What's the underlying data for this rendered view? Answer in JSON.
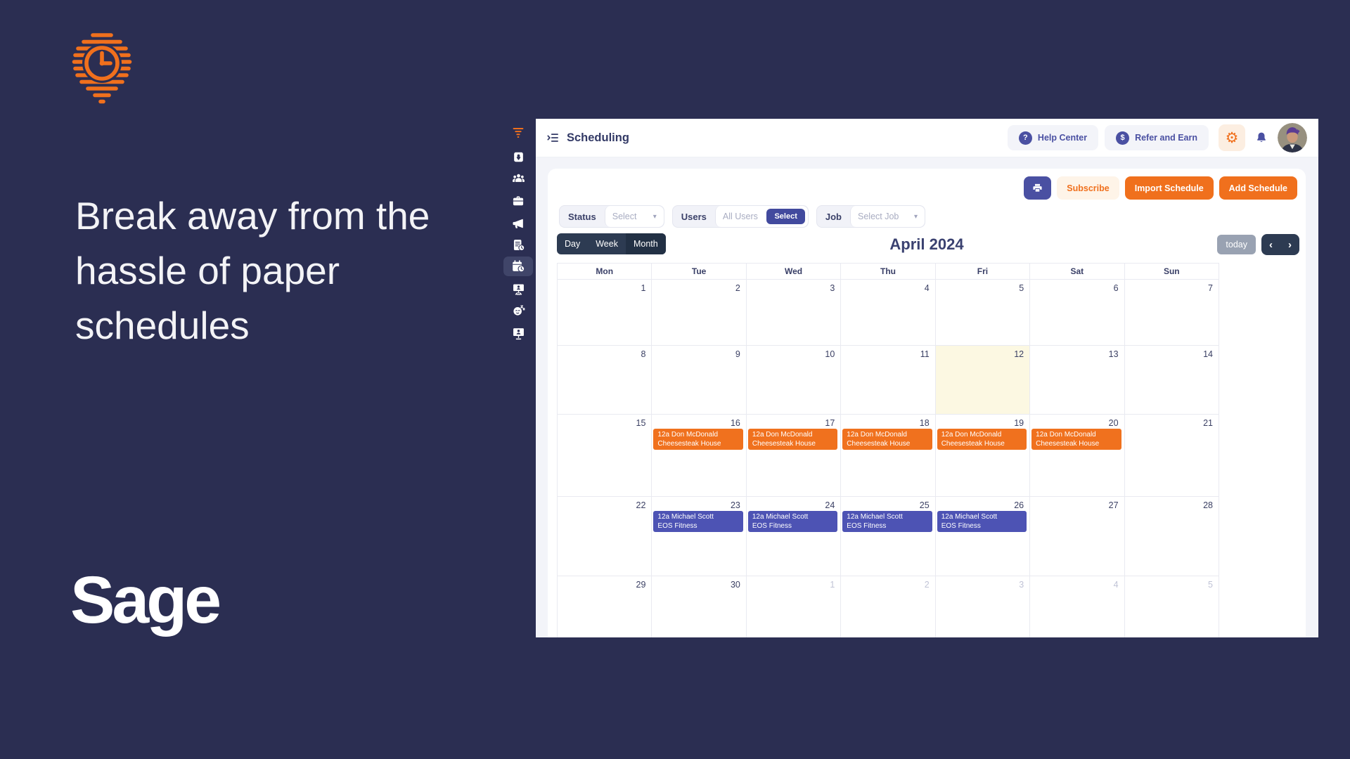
{
  "brand": {
    "headline": "Break away from the hassle of paper schedules",
    "wordmark": "Sage",
    "colors": {
      "background": "#2B2E52",
      "orange": "#F0701D",
      "indigo": "#4A50A2"
    }
  },
  "icon_glyphs": {
    "gear": "⚙",
    "question": "?",
    "dollar": "$",
    "prev": "‹",
    "next": "›",
    "dropdown": "▾"
  },
  "app": {
    "sidebar": {
      "items": [
        "sage-funnel",
        "map",
        "team",
        "briefcase",
        "announcements",
        "timesheets",
        "scheduling",
        "training",
        "leave",
        "kiosk"
      ],
      "active_item": "scheduling"
    },
    "header": {
      "title": "Scheduling",
      "help_center": "Help Center",
      "refer_and_earn": "Refer and Earn"
    },
    "toolbar": {
      "subscribe": "Subscribe",
      "import_schedule": "Import Schedule",
      "add_schedule": "Add Schedule"
    },
    "filters": {
      "status_label": "Status",
      "status_placeholder": "Select",
      "users_label": "Users",
      "users_placeholder": "All Users",
      "users_select_button": "Select",
      "job_label": "Job",
      "job_placeholder": "Select Job"
    },
    "view_controls": {
      "views": [
        "Day",
        "Week",
        "Month"
      ],
      "active_view": "Month",
      "month_title": "April 2024",
      "today_button": "today"
    },
    "calendar": {
      "day_headers": [
        "Mon",
        "Tue",
        "Wed",
        "Thu",
        "Fri",
        "Sat",
        "Sun"
      ],
      "events": {
        "don": {
          "line1": "12a Don McDonald",
          "line2": "Cheesesteak House",
          "color": "#F0711E"
        },
        "michael": {
          "line1": "12a Michael Scott",
          "line2": "EOS Fitness",
          "color": "#4D53B4"
        }
      },
      "weeks": [
        {
          "days": [
            {
              "date": "1"
            },
            {
              "date": "2"
            },
            {
              "date": "3"
            },
            {
              "date": "4"
            },
            {
              "date": "5"
            },
            {
              "date": "6"
            },
            {
              "date": "7"
            }
          ]
        },
        {
          "days": [
            {
              "date": "8"
            },
            {
              "date": "9"
            },
            {
              "date": "10"
            },
            {
              "date": "11"
            },
            {
              "date": "12",
              "today": true
            },
            {
              "date": "13"
            },
            {
              "date": "14"
            }
          ]
        },
        {
          "days": [
            {
              "date": "15"
            },
            {
              "date": "16",
              "event": "don"
            },
            {
              "date": "17",
              "event": "don"
            },
            {
              "date": "18",
              "event": "don"
            },
            {
              "date": "19",
              "event": "don"
            },
            {
              "date": "20",
              "event": "don"
            },
            {
              "date": "21"
            }
          ]
        },
        {
          "days": [
            {
              "date": "22"
            },
            {
              "date": "23",
              "event": "michael"
            },
            {
              "date": "24",
              "event": "michael"
            },
            {
              "date": "25",
              "event": "michael"
            },
            {
              "date": "26",
              "event": "michael"
            },
            {
              "date": "27"
            },
            {
              "date": "28"
            }
          ]
        },
        {
          "days": [
            {
              "date": "29"
            },
            {
              "date": "30"
            },
            {
              "date": "1",
              "muted": true
            },
            {
              "date": "2",
              "muted": true
            },
            {
              "date": "3",
              "muted": true
            },
            {
              "date": "4",
              "muted": true
            },
            {
              "date": "5",
              "muted": true
            }
          ]
        }
      ]
    }
  }
}
